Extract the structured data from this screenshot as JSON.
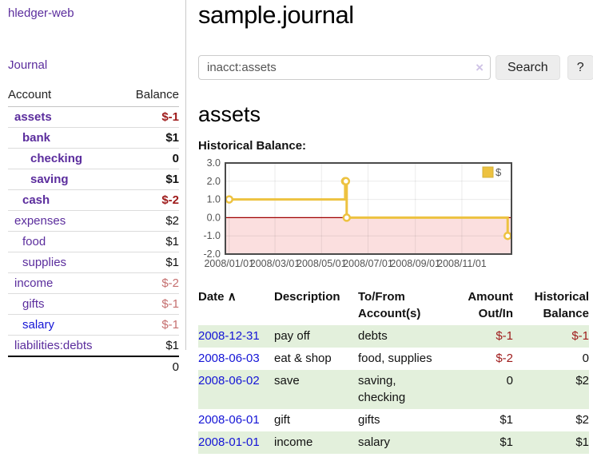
{
  "app": {
    "title": "hledger-web"
  },
  "sidebar": {
    "journal_label": "Journal",
    "accounts_table": {
      "headers": {
        "account": "Account",
        "balance": "Balance"
      },
      "rows": [
        {
          "name": "assets",
          "level": 0,
          "bold": true,
          "balance": "$-1",
          "balance_style": "neg-strong"
        },
        {
          "name": "bank",
          "level": 1,
          "bold": true,
          "balance": "$1",
          "balance_style": "pos"
        },
        {
          "name": "checking",
          "level": 2,
          "bold": true,
          "balance": "0",
          "balance_style": "pos"
        },
        {
          "name": "saving",
          "level": 2,
          "bold": true,
          "balance": "$1",
          "balance_style": "pos"
        },
        {
          "name": "cash",
          "level": 1,
          "bold": true,
          "balance": "$-2",
          "balance_style": "neg-strong"
        },
        {
          "name": "expenses",
          "level": 0,
          "bold": false,
          "balance": "$2",
          "balance_style": "pos"
        },
        {
          "name": "food",
          "level": 1,
          "bold": false,
          "balance": "$1",
          "balance_style": "pos"
        },
        {
          "name": "supplies",
          "level": 1,
          "bold": false,
          "balance": "$1",
          "balance_style": "pos"
        },
        {
          "name": "income",
          "level": 0,
          "bold": false,
          "balance": "$-2",
          "balance_style": "neg-soft"
        },
        {
          "name": "gifts",
          "level": 1,
          "bold": false,
          "balance": "$-1",
          "balance_style": "neg-soft"
        },
        {
          "name": "salary",
          "level": 1,
          "bold": false,
          "link_color": "blue",
          "balance": "$-1",
          "balance_style": "neg-soft"
        },
        {
          "name": "liabilities:debts",
          "level": 0,
          "bold": false,
          "balance": "$1",
          "balance_style": "pos"
        }
      ],
      "total": "0"
    }
  },
  "main": {
    "title": "sample.journal",
    "search": {
      "value": "inacct:assets",
      "clear_icon": "×",
      "button_label": "Search",
      "help_label": "?"
    },
    "account_heading": "assets",
    "chart_label": "Historical Balance:"
  },
  "chart_data": {
    "type": "line",
    "title": "Historical Balance:",
    "step": true,
    "series": [
      {
        "name": "$",
        "color": "#EDC240",
        "points": [
          {
            "date": "2008-01-01",
            "value": 1
          },
          {
            "date": "2008-06-01",
            "value": 2
          },
          {
            "date": "2008-06-02",
            "value": 2
          },
          {
            "date": "2008-06-03",
            "value": 0
          },
          {
            "date": "2008-12-31",
            "value": -1
          }
        ]
      }
    ],
    "x_ticks": [
      "2008/01/01",
      "2008/03/01",
      "2008/05/01",
      "2008/07/01",
      "2008/09/01",
      "2008/11/01"
    ],
    "y_ticks": [
      "3.0",
      "2.0",
      "1.0",
      "0.0",
      "-1.0",
      "-2.0"
    ],
    "ylim": [
      -2,
      3
    ],
    "grid": true,
    "negative_fill": "#fbdfdf",
    "zero_line_color": "#a00000",
    "border_color": "#4a4a4a",
    "tick_label_color": "#545454",
    "legend": {
      "label": "$",
      "position": "top-right"
    }
  },
  "register": {
    "sort_icon": "∧",
    "headers": {
      "date": "Date",
      "description": "Description",
      "accounts": "To/From Account(s)",
      "amount": "Amount Out/In",
      "balance": "Historical Balance"
    },
    "rows": [
      {
        "date": "2008-12-31",
        "description": "pay off",
        "accounts": "debts",
        "amount": "$-1",
        "amount_neg": true,
        "balance": "$-1",
        "balance_neg": true
      },
      {
        "date": "2008-06-03",
        "description": "eat & shop",
        "accounts": "food, supplies",
        "amount": "$-2",
        "amount_neg": true,
        "balance": "0",
        "balance_neg": false
      },
      {
        "date": "2008-06-02",
        "description": "save",
        "accounts": "saving, checking",
        "amount": "0",
        "amount_neg": false,
        "balance": "$2",
        "balance_neg": false
      },
      {
        "date": "2008-06-01",
        "description": "gift",
        "accounts": "gifts",
        "amount": "$1",
        "amount_neg": false,
        "balance": "$2",
        "balance_neg": false
      },
      {
        "date": "2008-01-01",
        "description": "income",
        "accounts": "salary",
        "amount": "$1",
        "amount_neg": false,
        "balance": "$1",
        "balance_neg": false
      }
    ]
  }
}
